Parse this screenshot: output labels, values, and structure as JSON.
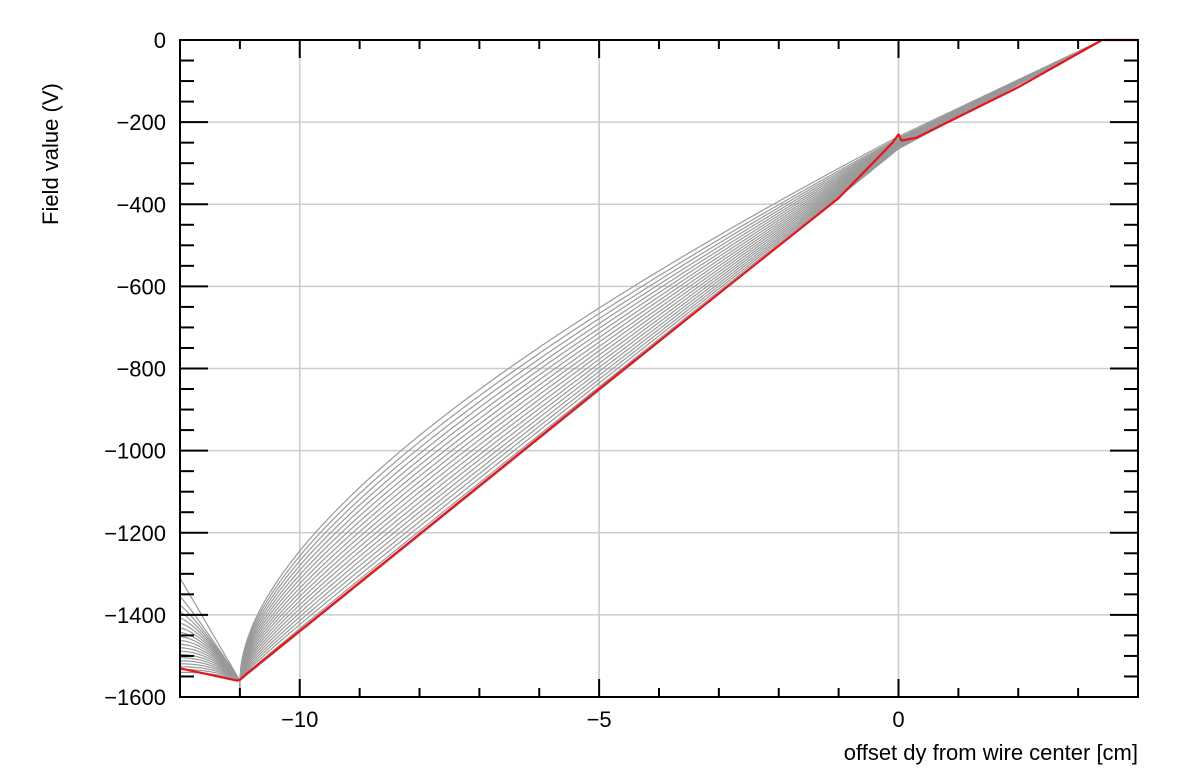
{
  "chart_data": {
    "type": "line",
    "title": "",
    "xlabel": "offset dy from wire center [cm]",
    "ylabel": "Field value (V)",
    "xlim": [
      -12,
      4
    ],
    "ylim": [
      -1600,
      0
    ],
    "xticks": [
      -10,
      -5,
      0
    ],
    "xtick_labels": [
      "−10",
      "−5",
      "0"
    ],
    "yticks": [
      0,
      -200,
      -400,
      -600,
      -800,
      -1000,
      -1200,
      -1400,
      -1600
    ],
    "ytick_labels": [
      "0",
      "−200",
      "−400",
      "−600",
      "−800",
      "−1000",
      "−1200",
      "−1400",
      "−1600"
    ],
    "grid": true,
    "legend": "none",
    "colors": {
      "family": "#999999",
      "highlight": "#e8141c",
      "grid": "#cccccc",
      "axis": "#000000"
    },
    "family_curves": {
      "count": 20,
      "note_color": "gray",
      "x_min_at": -11,
      "v_min": -1560,
      "x_kink": 0,
      "v_kink_range": [
        -235,
        -265
      ],
      "x_end": 3.4,
      "v_end": 0,
      "v_left_range": [
        -1310,
        -1540
      ],
      "max_bulge_at_minus8": [
        -1000,
        -1100
      ]
    },
    "series": [
      {
        "color": "#e8141c",
        "x": [
          -12,
          -11.05,
          -11,
          -10.9,
          -5,
          -1,
          -0.1,
          0,
          0.05,
          0.3,
          2,
          3.4,
          4
        ],
        "y": [
          -1530,
          -1560,
          -1558,
          -1545,
          -850,
          -385,
          -250,
          -230,
          -245,
          -238,
          -115,
          0,
          0
        ]
      }
    ]
  }
}
